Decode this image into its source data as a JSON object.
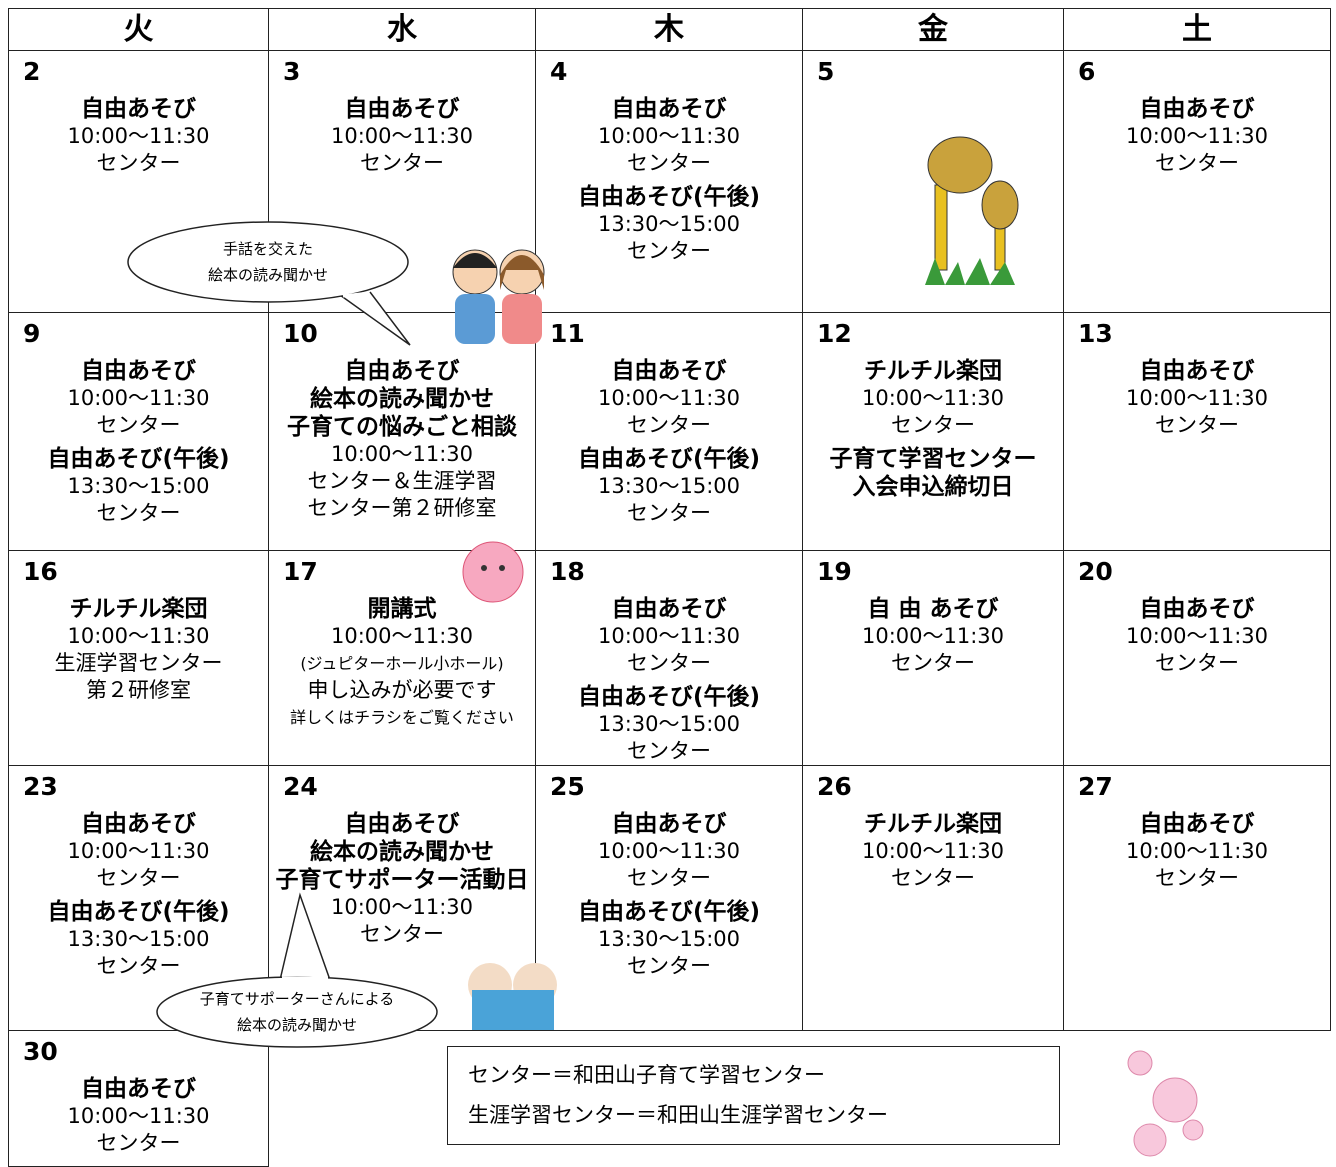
{
  "header": {
    "days": [
      "火",
      "水",
      "木",
      "金",
      "土"
    ]
  },
  "weeks": [
    [
      {
        "date": "2",
        "events": [
          {
            "titles": [
              "自由あそび"
            ],
            "details": [
              "10:00～11:30",
              "センター"
            ]
          }
        ]
      },
      {
        "date": "3",
        "events": [
          {
            "titles": [
              "自由あそび"
            ],
            "details": [
              "10:00～11:30",
              "センター"
            ]
          }
        ]
      },
      {
        "date": "4",
        "events": [
          {
            "titles": [
              "自由あそび"
            ],
            "details": [
              "10:00～11:30",
              "センター"
            ]
          },
          {
            "titles": [
              "自由あそび(午後)"
            ],
            "details": [
              "13:30～15:00",
              "センター"
            ]
          }
        ]
      },
      {
        "date": "5"
      },
      {
        "date": "6",
        "events": [
          {
            "titles": [
              "自由あそび"
            ],
            "details": [
              "10:00～11:30",
              "センター"
            ]
          }
        ]
      }
    ],
    [
      {
        "date": "9",
        "events": [
          {
            "titles": [
              "自由あそび"
            ],
            "details": [
              "10:00～11:30",
              "センター"
            ]
          },
          {
            "titles": [
              "自由あそび(午後)"
            ],
            "details": [
              "13:30～15:00",
              "センター"
            ]
          }
        ]
      },
      {
        "date": "10",
        "events": [
          {
            "titles": [
              "自由あそび",
              "絵本の読み聞かせ",
              "子育ての悩みごと相談"
            ],
            "details": [
              "10:00～11:30",
              "センター＆生涯学習",
              "センター第２研修室"
            ]
          }
        ]
      },
      {
        "date": "11",
        "events": [
          {
            "titles": [
              "自由あそび"
            ],
            "details": [
              "10:00～11:30",
              "センター"
            ]
          },
          {
            "titles": [
              "自由あそび(午後)"
            ],
            "details": [
              "13:30～15:00",
              "センター"
            ]
          }
        ]
      },
      {
        "date": "12",
        "events": [
          {
            "titles": [
              "チルチル楽団"
            ],
            "details": [
              "10:00～11:30",
              "センター"
            ]
          },
          {
            "titles": [
              "子育て学習センター",
              "入会申込締切日"
            ]
          }
        ]
      },
      {
        "date": "13",
        "events": [
          {
            "titles": [
              "自由あそび"
            ],
            "details": [
              "10:00～11:30",
              "センター"
            ]
          }
        ]
      }
    ],
    [
      {
        "date": "16",
        "events": [
          {
            "titles": [
              "チルチル楽団"
            ],
            "details": [
              "10:00～11:30",
              "生涯学習センター",
              "第２研修室"
            ]
          }
        ]
      },
      {
        "date": "17",
        "events": [
          {
            "titles": [
              "開講式"
            ],
            "details": [
              "10:00～11:30",
              "(ジュピターホール小ホール)",
              "申し込みが必要です",
              "詳しくはチラシをご覧ください"
            ]
          }
        ]
      },
      {
        "date": "18",
        "events": [
          {
            "titles": [
              "自由あそび"
            ],
            "details": [
              "10:00～11:30",
              "センター"
            ]
          },
          {
            "titles": [
              "自由あそび(午後)"
            ],
            "details": [
              "13:30～15:00",
              "センター"
            ]
          }
        ]
      },
      {
        "date": "19",
        "events": [
          {
            "titles": [
              "自 由 あそび"
            ],
            "details": [
              "10:00～11:30",
              "センター"
            ]
          }
        ]
      },
      {
        "date": "20",
        "events": [
          {
            "titles": [
              "自由あそび"
            ],
            "details": [
              "10:00～11:30",
              "センター"
            ]
          }
        ]
      }
    ],
    [
      {
        "date": "23",
        "events": [
          {
            "titles": [
              "自由あそび"
            ],
            "details": [
              "10:00～11:30",
              "センター"
            ]
          },
          {
            "titles": [
              "自由あそび(午後)"
            ],
            "details": [
              "13:30～15:00",
              "センター"
            ]
          }
        ]
      },
      {
        "date": "24",
        "events": [
          {
            "titles": [
              "自由あそび",
              "絵本の読み聞かせ",
              "子育てサポーター活動日"
            ],
            "details": [
              "10:00～11:30",
              "センター"
            ]
          }
        ]
      },
      {
        "date": "25",
        "events": [
          {
            "titles": [
              "自由あそび"
            ],
            "details": [
              "10:00～11:30",
              "センター"
            ]
          },
          {
            "titles": [
              "自由あそび(午後)"
            ],
            "details": [
              "13:30～15:00",
              "センター"
            ]
          }
        ]
      },
      {
        "date": "26",
        "events": [
          {
            "titles": [
              "チルチル楽団"
            ],
            "details": [
              "10:00～11:30",
              "センター"
            ]
          }
        ]
      },
      {
        "date": "27",
        "events": [
          {
            "titles": [
              "自由あそび"
            ],
            "details": [
              "10:00～11:30",
              "センター"
            ]
          }
        ]
      }
    ],
    [
      {
        "date": "30",
        "events": [
          {
            "titles": [
              "自由あそび"
            ],
            "details": [
              "10:00～11:30",
              "センター"
            ]
          }
        ]
      }
    ]
  ],
  "callouts": [
    {
      "lines": [
        "手話を交えた",
        "絵本の読み聞かせ"
      ]
    },
    {
      "lines": [
        "子育てサポーターさんによる",
        "絵本の読み聞かせ"
      ]
    }
  ],
  "legend": {
    "lines": [
      "センター＝和田山子育て学習センター",
      "生涯学習センター＝和田山生涯学習センター"
    ]
  }
}
